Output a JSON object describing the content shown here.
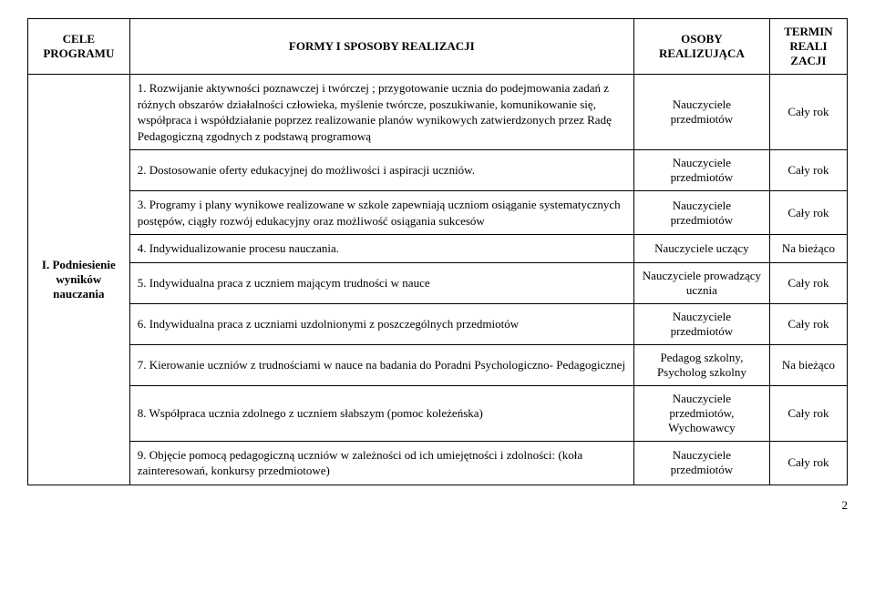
{
  "header": {
    "col1": "CELE PROGRAMU",
    "col2": "FORMY I SPOSOBY REALIZACJI",
    "col3": "OSOBY REALIZUJĄCA",
    "col4": "TERMIN REALI ZACJI"
  },
  "section_title": "I. Podniesienie wyników nauczania",
  "rows": [
    {
      "formy": "1. Rozwijanie aktywności poznawczej i twórczej ; przygotowanie ucznia do podejmowania zadań z różnych obszarów działalności człowieka, myślenie twórcze, poszukiwanie, komunikowanie się, współpraca i współdziałanie poprzez realizowanie planów wynikowych zatwierdzonych przez Radę Pedagogiczną zgodnych z podstawą programową",
      "osoby": "Nauczyciele przedmiotów",
      "termin": "Cały rok"
    },
    {
      "formy": "2. Dostosowanie oferty edukacyjnej do możliwości i aspiracji uczniów.",
      "osoby": "Nauczyciele przedmiotów",
      "termin": "Cały rok"
    },
    {
      "formy": "3. Programy i plany wynikowe realizowane w szkole zapewniają uczniom osiąganie systematycznych postępów, ciągły rozwój edukacyjny oraz możliwość osiągania sukcesów",
      "osoby": "Nauczyciele przedmiotów",
      "termin": "Cały rok"
    },
    {
      "formy": "4. Indywidualizowanie procesu nauczania.",
      "osoby": "Nauczyciele uczący",
      "termin": "Na bieżąco"
    },
    {
      "formy": "5. Indywidualna praca z uczniem mającym trudności w nauce",
      "osoby": "Nauczyciele prowadzący ucznia",
      "termin": "Cały rok"
    },
    {
      "formy": "6. Indywidualna praca z uczniami uzdolnionymi z poszczególnych przedmiotów",
      "osoby": "Nauczyciele przedmiotów",
      "termin": "Cały rok"
    },
    {
      "formy": "7. Kierowanie uczniów z trudnościami w nauce na badania do Poradni Psychologiczno- Pedagogicznej",
      "osoby": "Pedagog szkolny, Psycholog szkolny",
      "termin": "Na bieżąco"
    },
    {
      "formy": "8. Współpraca ucznia zdolnego z uczniem słabszym (pomoc koleżeńska)",
      "osoby": "Nauczyciele przedmiotów, Wychowawcy",
      "termin": "Cały rok"
    },
    {
      "formy": "9. Objęcie pomocą pedagogiczną uczniów w zależności od ich umiejętności i zdolności: (koła zainteresowań, konkursy przedmiotowe)",
      "osoby": "Nauczyciele przedmiotów",
      "termin": "Cały rok"
    }
  ],
  "page_number": "2"
}
